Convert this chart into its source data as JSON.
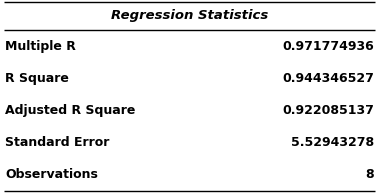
{
  "title": "Regression Statistics",
  "rows": [
    [
      "Multiple R",
      "0.971774936"
    ],
    [
      "R Square",
      "0.944346527"
    ],
    [
      "Adjusted R Square",
      "0.922085137"
    ],
    [
      "Standard Error",
      "5.52943278"
    ],
    [
      "Observations",
      "8"
    ]
  ],
  "title_fontsize": 9.5,
  "body_fontsize": 9.0,
  "bg_color": "#ffffff",
  "border_color": "#000000",
  "title_style": "italic",
  "title_weight": "bold",
  "body_weight": "bold",
  "fig_width": 3.79,
  "fig_height": 1.93,
  "dpi": 100
}
